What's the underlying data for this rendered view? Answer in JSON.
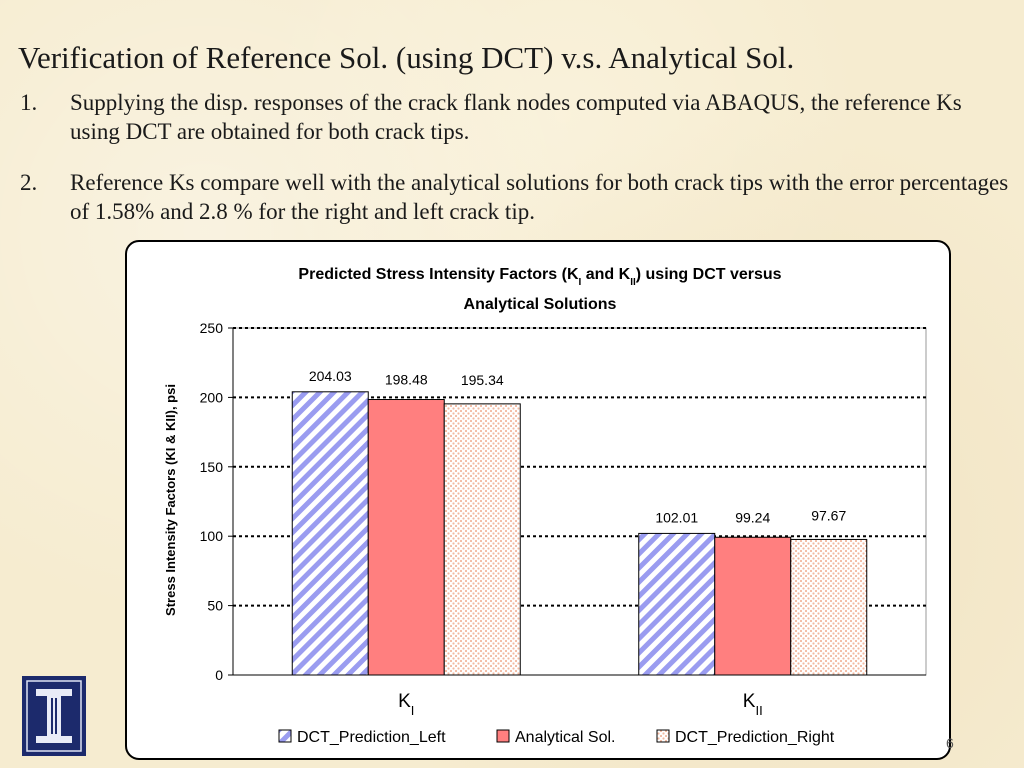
{
  "slide": {
    "title": "Verification of Reference Sol. (using DCT) v.s. Analytical Sol.",
    "bullets": [
      {
        "num": "1.",
        "text": "Supplying the disp. responses of the crack flank nodes computed via ABAQUS, the reference Ks using DCT are obtained for both crack tips."
      },
      {
        "num": "2.",
        "text": "Reference Ks compare well with the analytical solutions for both crack tips with the error percentages of 1.58% and 2.8 % for the right and left crack tip."
      }
    ],
    "page_number": "6",
    "logo_icon": "university-pillar-logo-icon"
  },
  "chart_data": {
    "type": "bar",
    "title_line1_pre": "Predicted Stress Intensity Factors (K",
    "title_sub1": "I",
    "title_mid": " and K",
    "title_sub2": "II",
    "title_line1_post": ") using DCT versus",
    "title_line2": "Analytical Solutions",
    "ylabel": "Stress Intensity Factors (KI & KII), psi",
    "xlabel": "",
    "categories": [
      {
        "main": "K",
        "sub": "I"
      },
      {
        "main": "K",
        "sub": "II"
      }
    ],
    "series": [
      {
        "name": "DCT_Prediction_Left",
        "values": [
          204.03,
          102.01
        ],
        "labels": [
          "204.03",
          "102.01"
        ],
        "color": "#9a9cf0",
        "pattern": "diagonal-stripes"
      },
      {
        "name": "Analytical Sol.",
        "values": [
          198.48,
          99.24
        ],
        "labels": [
          "198.48",
          "99.24"
        ],
        "color": "#ff7f7f",
        "pattern": "solid"
      },
      {
        "name": "DCT_Prediction_Right",
        "values": [
          195.34,
          97.67
        ],
        "labels": [
          "195.34",
          "97.67"
        ],
        "color": "#f2b9a0",
        "pattern": "dots"
      }
    ],
    "ylim": [
      0,
      250
    ],
    "yticks": [
      "0",
      "50",
      "100",
      "150",
      "200",
      "250"
    ],
    "grid": true,
    "legend_position": "bottom"
  }
}
